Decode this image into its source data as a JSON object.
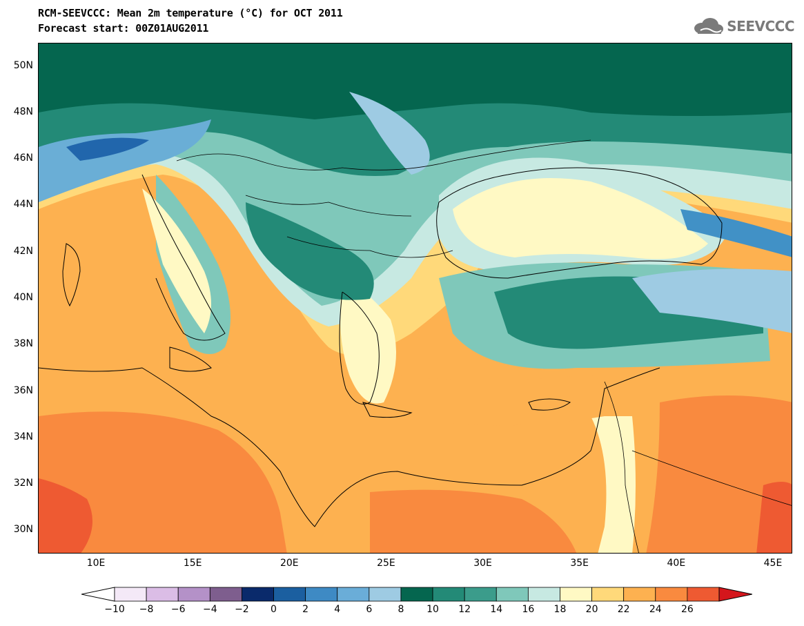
{
  "header": {
    "title_line1": "RCM-SEEVCCC: Mean 2m temperature (°C) for OCT 2011",
    "title_line2": "Forecast start: 00Z01AUG2011"
  },
  "logo": {
    "text": "SEEVCCC",
    "icon": "cloud-icon"
  },
  "map": {
    "lat_range": [
      29,
      51
    ],
    "lon_range": [
      7,
      46
    ],
    "lat_ticks": [
      {
        "value": 50,
        "label": "50N"
      },
      {
        "value": 48,
        "label": "48N"
      },
      {
        "value": 46,
        "label": "46N"
      },
      {
        "value": 44,
        "label": "44N"
      },
      {
        "value": 42,
        "label": "42N"
      },
      {
        "value": 40,
        "label": "40N"
      },
      {
        "value": 38,
        "label": "38N"
      },
      {
        "value": 36,
        "label": "36N"
      },
      {
        "value": 34,
        "label": "34N"
      },
      {
        "value": 32,
        "label": "32N"
      },
      {
        "value": 30,
        "label": "30N"
      }
    ],
    "lon_ticks": [
      {
        "value": 10,
        "label": "10E"
      },
      {
        "value": 15,
        "label": "15E"
      },
      {
        "value": 20,
        "label": "20E"
      },
      {
        "value": 25,
        "label": "25E"
      },
      {
        "value": 30,
        "label": "30E"
      },
      {
        "value": 35,
        "label": "35E"
      },
      {
        "value": 40,
        "label": "40E"
      },
      {
        "value": 45,
        "label": "45E"
      }
    ],
    "colors": {
      "c8": "#05664f",
      "c10": "#238a77",
      "c12": "#3b9c8b",
      "c14": "#7fc8ba",
      "c16": "#c7e9e2",
      "c18": "#fff9c4",
      "c20": "#ffd97a",
      "c22": "#fdb150",
      "c24": "#f98a3f",
      "c26": "#ee5a32",
      "c6": "#9ecbe3",
      "c4": "#6aaed6",
      "c2": "#4191c6",
      "c0": "#2166ac"
    }
  },
  "colorbar": {
    "labels": [
      "−10",
      "−8",
      "−6",
      "−4",
      "−2",
      "0",
      "2",
      "4",
      "6",
      "8",
      "10",
      "12",
      "14",
      "16",
      "18",
      "20",
      "22",
      "24",
      "26"
    ],
    "colors": [
      "#f4e9f7",
      "#dbbde6",
      "#b491c8",
      "#7e5e8e",
      "#0a2a6b",
      "#1b5fa0",
      "#3e8ac4",
      "#6aadd8",
      "#9ecbe3",
      "#05664f",
      "#238a77",
      "#3b9c8b",
      "#7fc8ba",
      "#c7e9e2",
      "#fff9c4",
      "#ffd97a",
      "#fdb150",
      "#f98a3f",
      "#ee5a32"
    ],
    "low_color": "#ffffff",
    "high_color": "#d4161c"
  }
}
